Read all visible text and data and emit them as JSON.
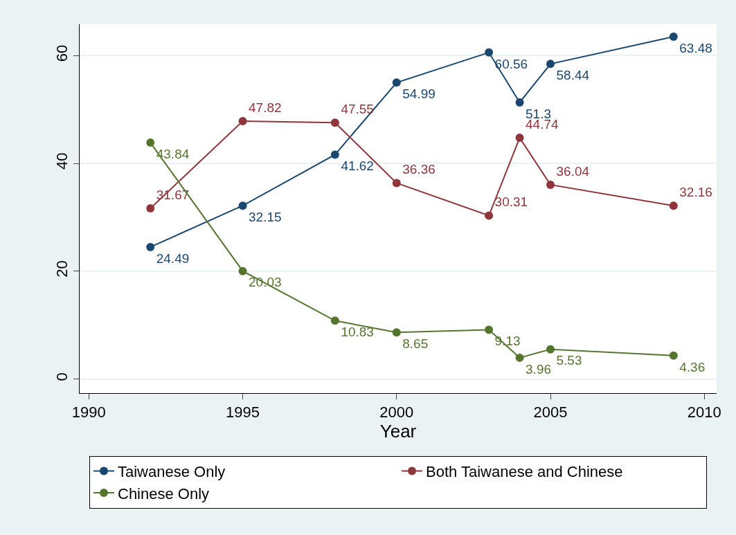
{
  "chart_data": {
    "type": "line",
    "xlabel": "Year",
    "x": [
      1992,
      1995,
      1998,
      2000,
      2003,
      2004,
      2005,
      2009
    ],
    "series": [
      {
        "name": "Taiwanese Only",
        "color": "#1a476f",
        "values": [
          24.49,
          32.15,
          41.62,
          54.99,
          60.56,
          51.3,
          58.44,
          63.48
        ]
      },
      {
        "name": "Both Taiwanese and Chinese",
        "color": "#90353b",
        "values": [
          31.67,
          47.82,
          47.55,
          36.36,
          30.31,
          44.74,
          36.04,
          32.16
        ]
      },
      {
        "name": "Chinese Only",
        "color": "#55752f",
        "values": [
          43.84,
          20.03,
          10.83,
          8.65,
          9.13,
          3.96,
          5.53,
          4.36
        ]
      }
    ],
    "xlim": [
      1989.7,
      2010.4
    ],
    "xticks": [
      1990,
      1995,
      2000,
      2005,
      2010
    ],
    "ylim": [
      -2.6,
      65.8
    ],
    "yticks": [
      0,
      20,
      40,
      60
    ],
    "grid": "y",
    "legend": "bottom",
    "marker": "circle",
    "line_style": "solid",
    "data_labels": true
  }
}
